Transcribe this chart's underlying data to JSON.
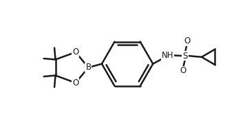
{
  "bg_color": "#ffffff",
  "line_color": "#1a1a1a",
  "line_width": 1.8,
  "font_size": 8.5,
  "fig_width": 3.56,
  "fig_height": 1.96,
  "dpi": 100,
  "xlim": [
    0,
    10
  ],
  "ylim": [
    0,
    5.5
  ]
}
